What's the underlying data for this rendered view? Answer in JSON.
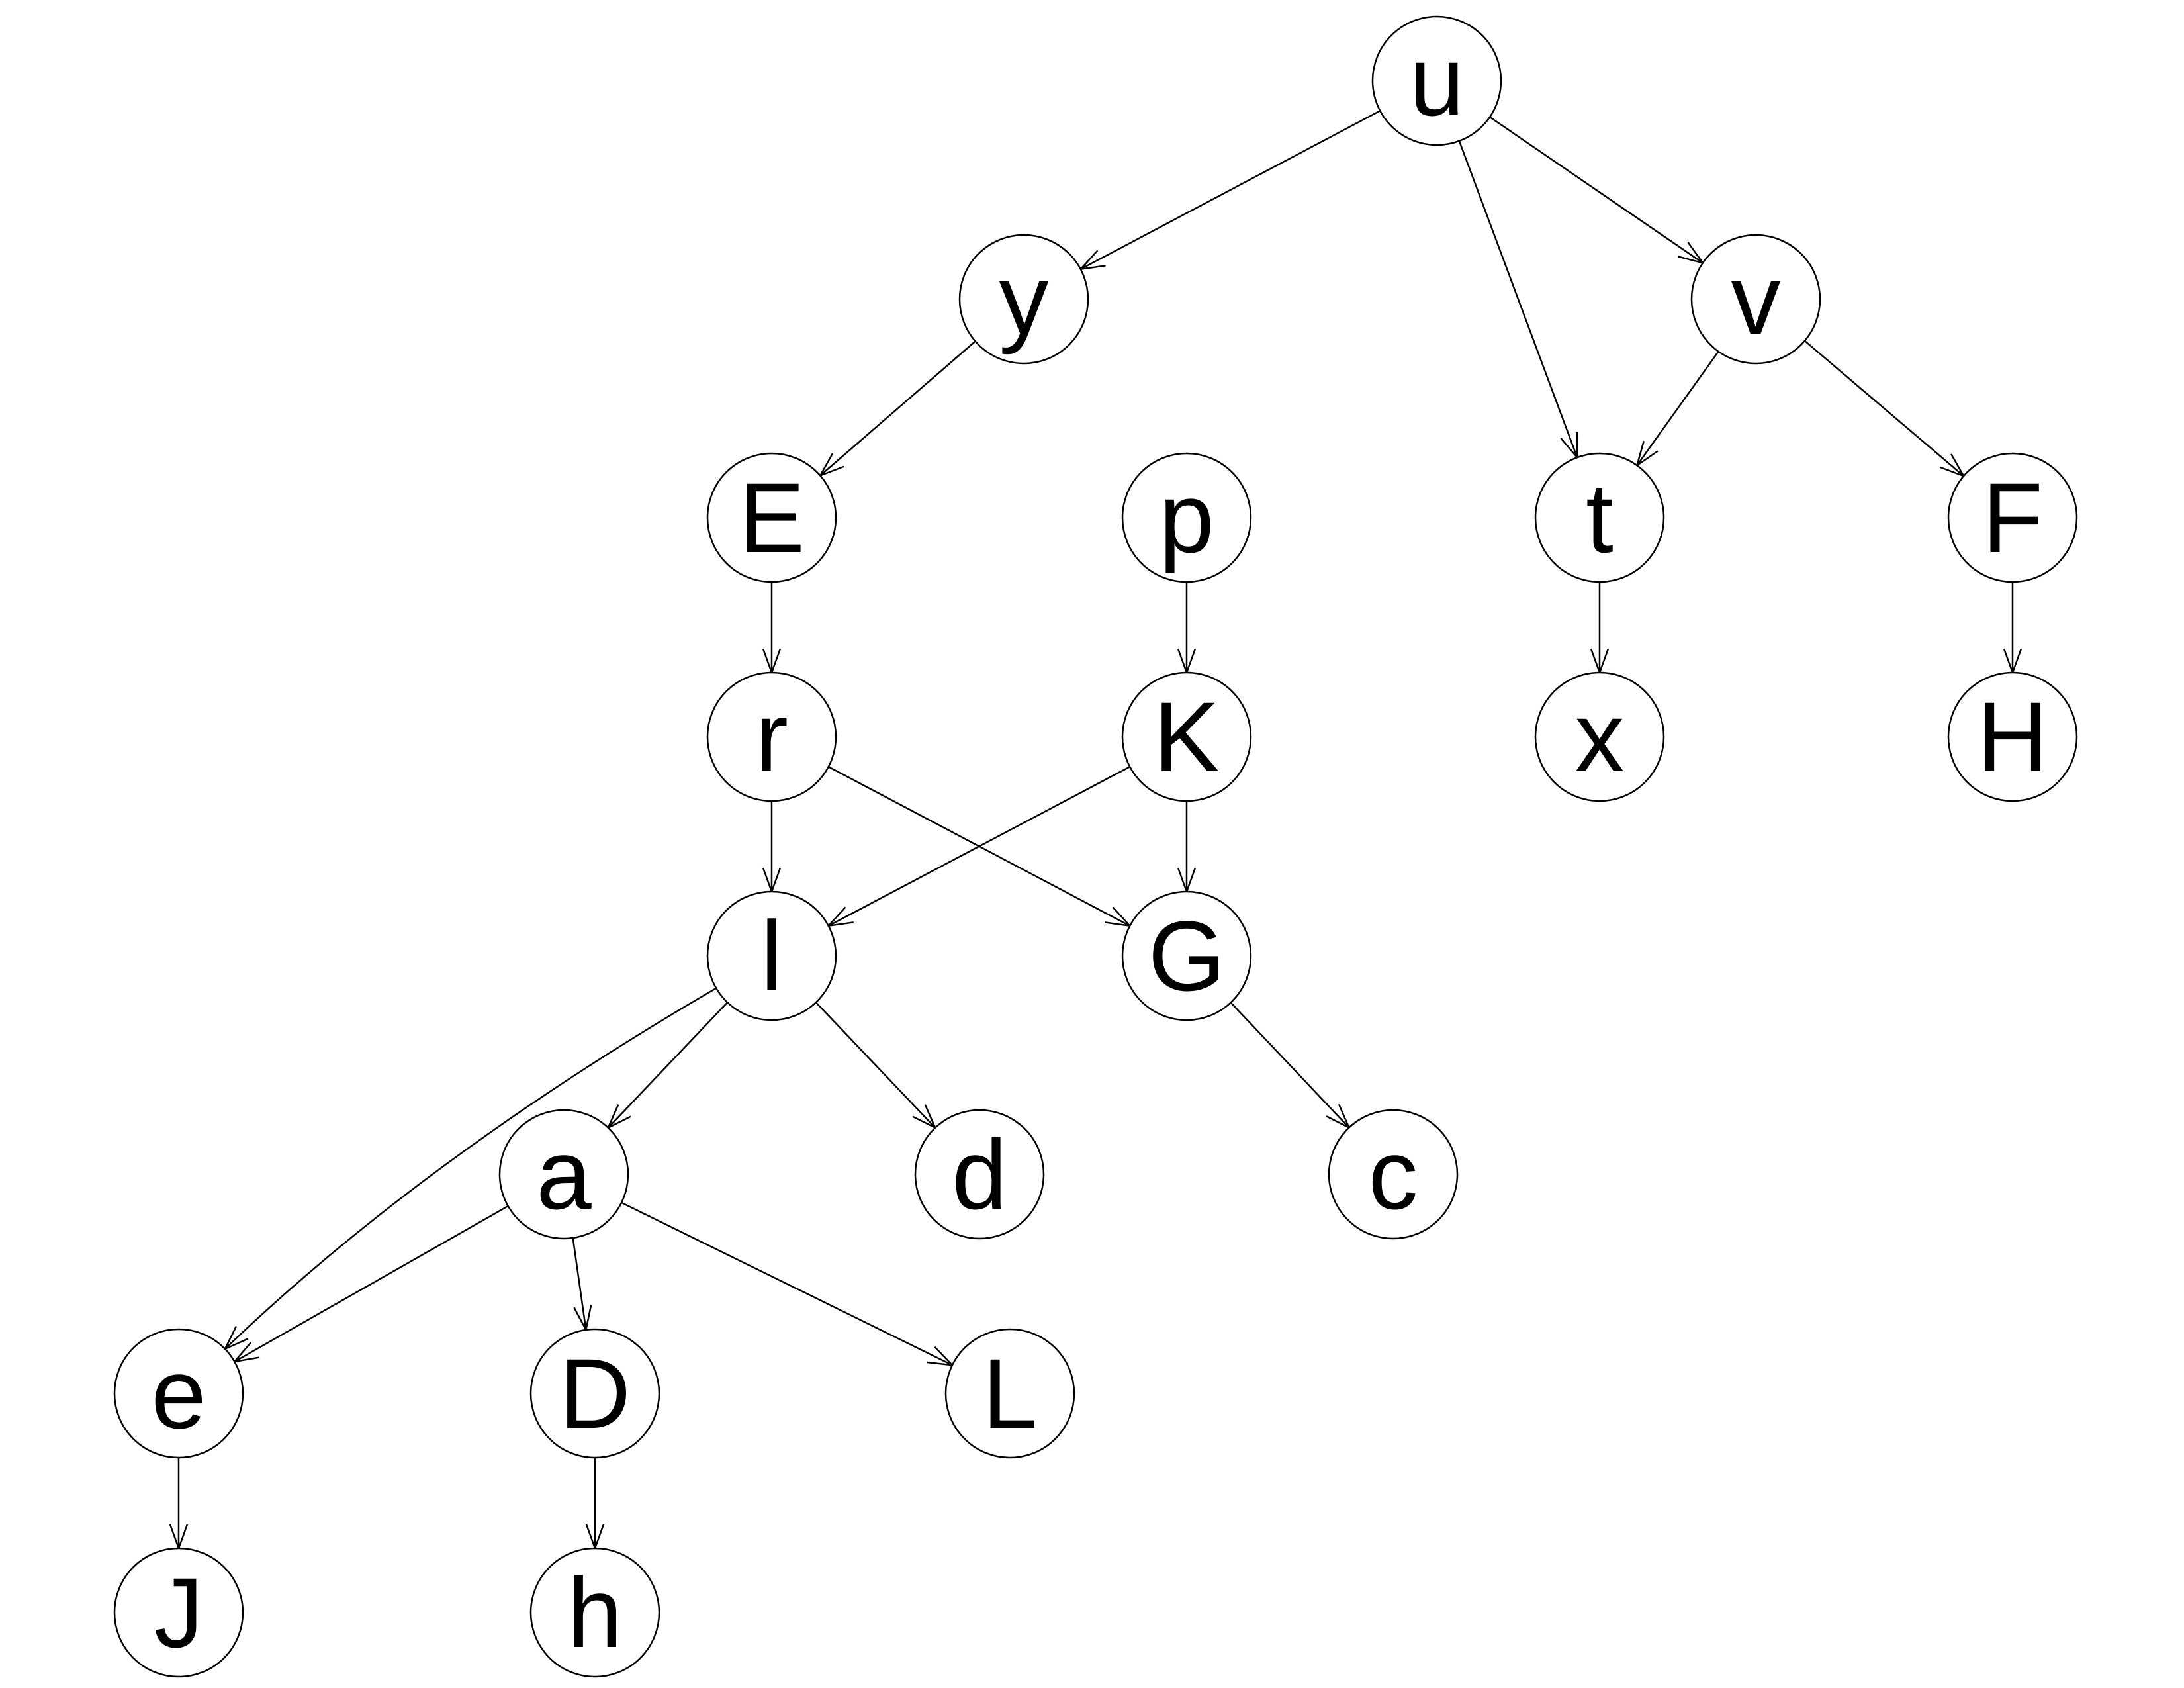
{
  "diagram": {
    "type": "directed-graph",
    "nodes": [
      {
        "id": "u",
        "label": "u"
      },
      {
        "id": "y",
        "label": "y"
      },
      {
        "id": "v",
        "label": "v"
      },
      {
        "id": "E",
        "label": "E"
      },
      {
        "id": "p",
        "label": "p"
      },
      {
        "id": "t",
        "label": "t"
      },
      {
        "id": "F",
        "label": "F"
      },
      {
        "id": "r",
        "label": "r"
      },
      {
        "id": "K",
        "label": "K"
      },
      {
        "id": "x",
        "label": "x"
      },
      {
        "id": "H",
        "label": "H"
      },
      {
        "id": "l",
        "label": "l"
      },
      {
        "id": "G",
        "label": "G"
      },
      {
        "id": "a",
        "label": "a"
      },
      {
        "id": "d",
        "label": "d"
      },
      {
        "id": "c",
        "label": "c"
      },
      {
        "id": "e",
        "label": "e"
      },
      {
        "id": "D",
        "label": "D"
      },
      {
        "id": "L",
        "label": "L"
      },
      {
        "id": "J",
        "label": "J"
      },
      {
        "id": "h",
        "label": "h"
      }
    ],
    "edges": [
      {
        "from": "u",
        "to": "y"
      },
      {
        "from": "u",
        "to": "t"
      },
      {
        "from": "u",
        "to": "v"
      },
      {
        "from": "y",
        "to": "E"
      },
      {
        "from": "v",
        "to": "t"
      },
      {
        "from": "v",
        "to": "F"
      },
      {
        "from": "E",
        "to": "r"
      },
      {
        "from": "p",
        "to": "K"
      },
      {
        "from": "t",
        "to": "x"
      },
      {
        "from": "F",
        "to": "H"
      },
      {
        "from": "r",
        "to": "l"
      },
      {
        "from": "r",
        "to": "G"
      },
      {
        "from": "K",
        "to": "l"
      },
      {
        "from": "K",
        "to": "G"
      },
      {
        "from": "l",
        "to": "a"
      },
      {
        "from": "l",
        "to": "d"
      },
      {
        "from": "l",
        "to": "e"
      },
      {
        "from": "G",
        "to": "c"
      },
      {
        "from": "a",
        "to": "e"
      },
      {
        "from": "a",
        "to": "D"
      },
      {
        "from": "a",
        "to": "L"
      },
      {
        "from": "e",
        "to": "J"
      },
      {
        "from": "D",
        "to": "h"
      }
    ]
  }
}
